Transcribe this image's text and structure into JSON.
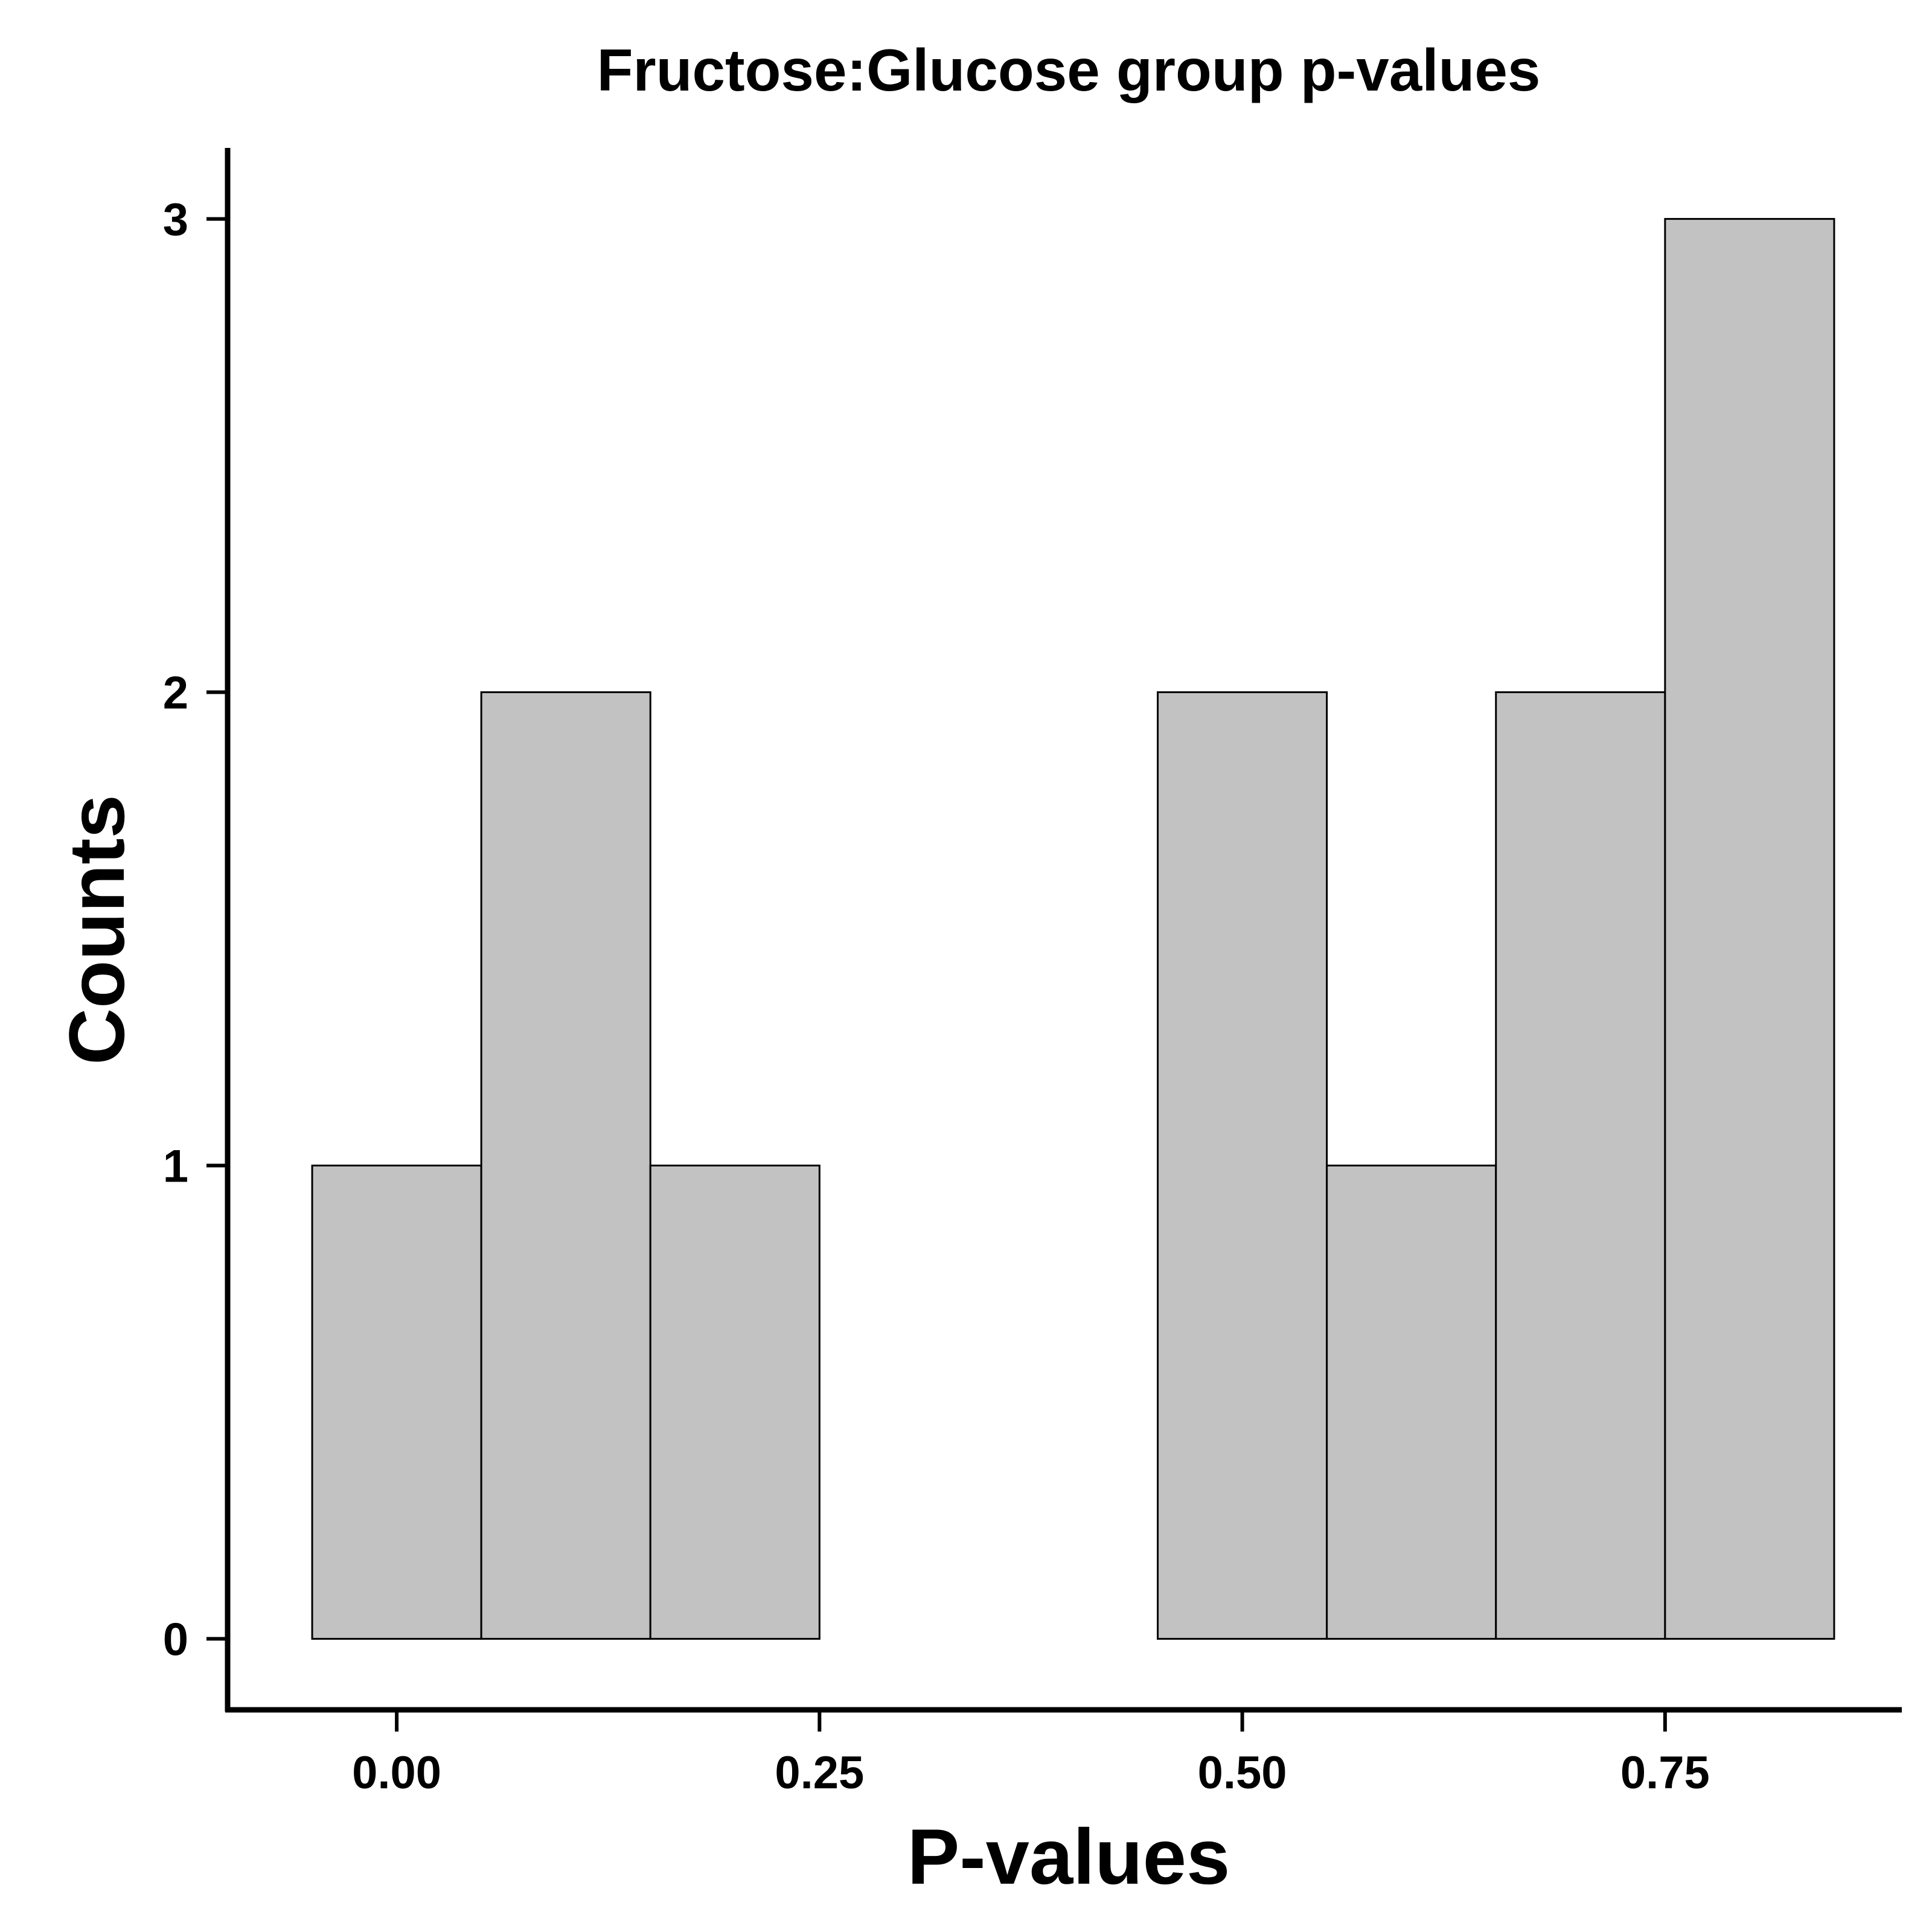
{
  "chart_data": {
    "type": "bar",
    "title": "Fructose:Glucose group p-values",
    "xlabel": "P-values",
    "ylabel": "Counts",
    "bin_width": 0.1,
    "bins": [
      {
        "x0": -0.05,
        "x1": 0.05,
        "count": 1
      },
      {
        "x0": 0.05,
        "x1": 0.15,
        "count": 2
      },
      {
        "x0": 0.15,
        "x1": 0.25,
        "count": 1
      },
      {
        "x0": 0.25,
        "x1": 0.35,
        "count": 0
      },
      {
        "x0": 0.35,
        "x1": 0.45,
        "count": 0
      },
      {
        "x0": 0.45,
        "x1": 0.55,
        "count": 2
      },
      {
        "x0": 0.55,
        "x1": 0.65,
        "count": 1
      },
      {
        "x0": 0.65,
        "x1": 0.75,
        "count": 2
      },
      {
        "x0": 0.75,
        "x1": 0.85,
        "count": 3
      }
    ],
    "xlim": [
      -0.1,
      0.89
    ],
    "ylim": [
      -0.15,
      3.15
    ],
    "x_ticks": [
      {
        "value": 0.0,
        "label": "0.00"
      },
      {
        "value": 0.25,
        "label": "0.25"
      },
      {
        "value": 0.5,
        "label": "0.50"
      },
      {
        "value": 0.75,
        "label": "0.75"
      }
    ],
    "y_ticks": [
      {
        "value": 0,
        "label": "0"
      },
      {
        "value": 1,
        "label": "1"
      },
      {
        "value": 2,
        "label": "2"
      },
      {
        "value": 3,
        "label": "3"
      }
    ],
    "grid": false,
    "bar_color": "#c2c2c2",
    "edge_color": "#000000"
  }
}
